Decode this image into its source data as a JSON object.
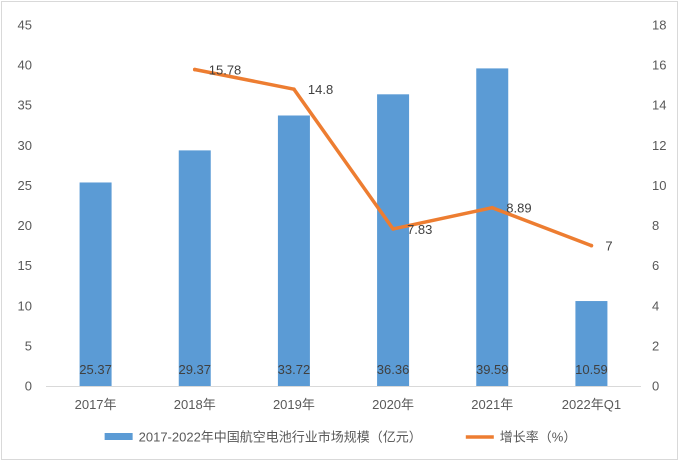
{
  "chart_data": {
    "type": "bar+line",
    "categories": [
      "2017年",
      "2018年",
      "2019年",
      "2020年",
      "2021年",
      "2022年Q1"
    ],
    "series": [
      {
        "name": "2017-2022年中国航空电池行业市场规模（亿元）",
        "type": "bar",
        "axis": "left",
        "color": "#5b9bd5",
        "values": [
          25.37,
          29.37,
          33.72,
          36.36,
          39.59,
          10.59
        ],
        "labels": [
          "25.37",
          "29.37",
          "33.72",
          "36.36",
          "39.59",
          "10.59"
        ]
      },
      {
        "name": "增长率（%）",
        "type": "line",
        "axis": "right",
        "color": "#ed7d31",
        "values": [
          null,
          15.78,
          14.8,
          7.83,
          8.89,
          7
        ],
        "labels": [
          "",
          "15.78",
          "14.8",
          "7.83",
          "8.89",
          "7"
        ]
      }
    ],
    "y_left": {
      "min": 0,
      "max": 45,
      "step": 5,
      "ticks": [
        "0",
        "5",
        "10",
        "15",
        "20",
        "25",
        "30",
        "35",
        "40",
        "45"
      ]
    },
    "y_right": {
      "min": 0,
      "max": 18,
      "step": 2,
      "ticks": [
        "0",
        "2",
        "4",
        "6",
        "8",
        "10",
        "12",
        "14",
        "16",
        "18"
      ]
    },
    "grid": false,
    "legend": "bottom",
    "axis_color": "#d9d9d9"
  }
}
